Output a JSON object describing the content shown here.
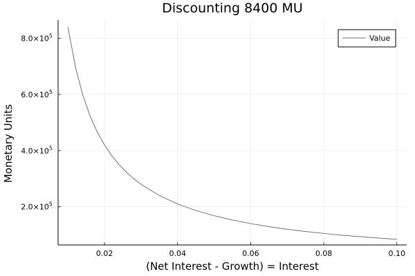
{
  "chart_data": {
    "type": "line",
    "title": "Discounting 8400 MU",
    "xlabel": "(Net Interest - Growth) = Interest",
    "ylabel": "Monetary Units",
    "xlim": [
      0.0073,
      0.1027
    ],
    "ylim": [
      64000,
      865000
    ],
    "xticks": [
      0.02,
      0.04,
      0.06,
      0.08,
      0.1
    ],
    "xtick_labels": [
      "0.02",
      "0.04",
      "0.06",
      "0.08",
      "0.10"
    ],
    "yticks": [
      200000,
      400000,
      600000,
      800000
    ],
    "ytick_labels": [
      {
        "mantissa": "2.0",
        "exp": "5"
      },
      {
        "mantissa": "4.0",
        "exp": "5"
      },
      {
        "mantissa": "6.0",
        "exp": "5"
      },
      {
        "mantissa": "8.0",
        "exp": "5"
      }
    ],
    "grid": true,
    "legend_position": "top-right",
    "series": [
      {
        "name": "Value",
        "color": "#707070",
        "x": [
          0.01,
          0.012,
          0.014,
          0.016,
          0.018,
          0.02,
          0.022,
          0.024,
          0.026,
          0.028,
          0.03,
          0.035,
          0.04,
          0.045,
          0.05,
          0.055,
          0.06,
          0.065,
          0.07,
          0.075,
          0.08,
          0.085,
          0.09,
          0.095,
          0.1
        ],
        "y": [
          840000,
          700000,
          600000,
          525000,
          466667,
          420000,
          381818,
          350000,
          323077,
          300000,
          280000,
          240000,
          210000,
          186667,
          168000,
          152727,
          140000,
          129231,
          120000,
          112000,
          105000,
          98824,
          93333,
          88421,
          84000
        ]
      }
    ]
  }
}
